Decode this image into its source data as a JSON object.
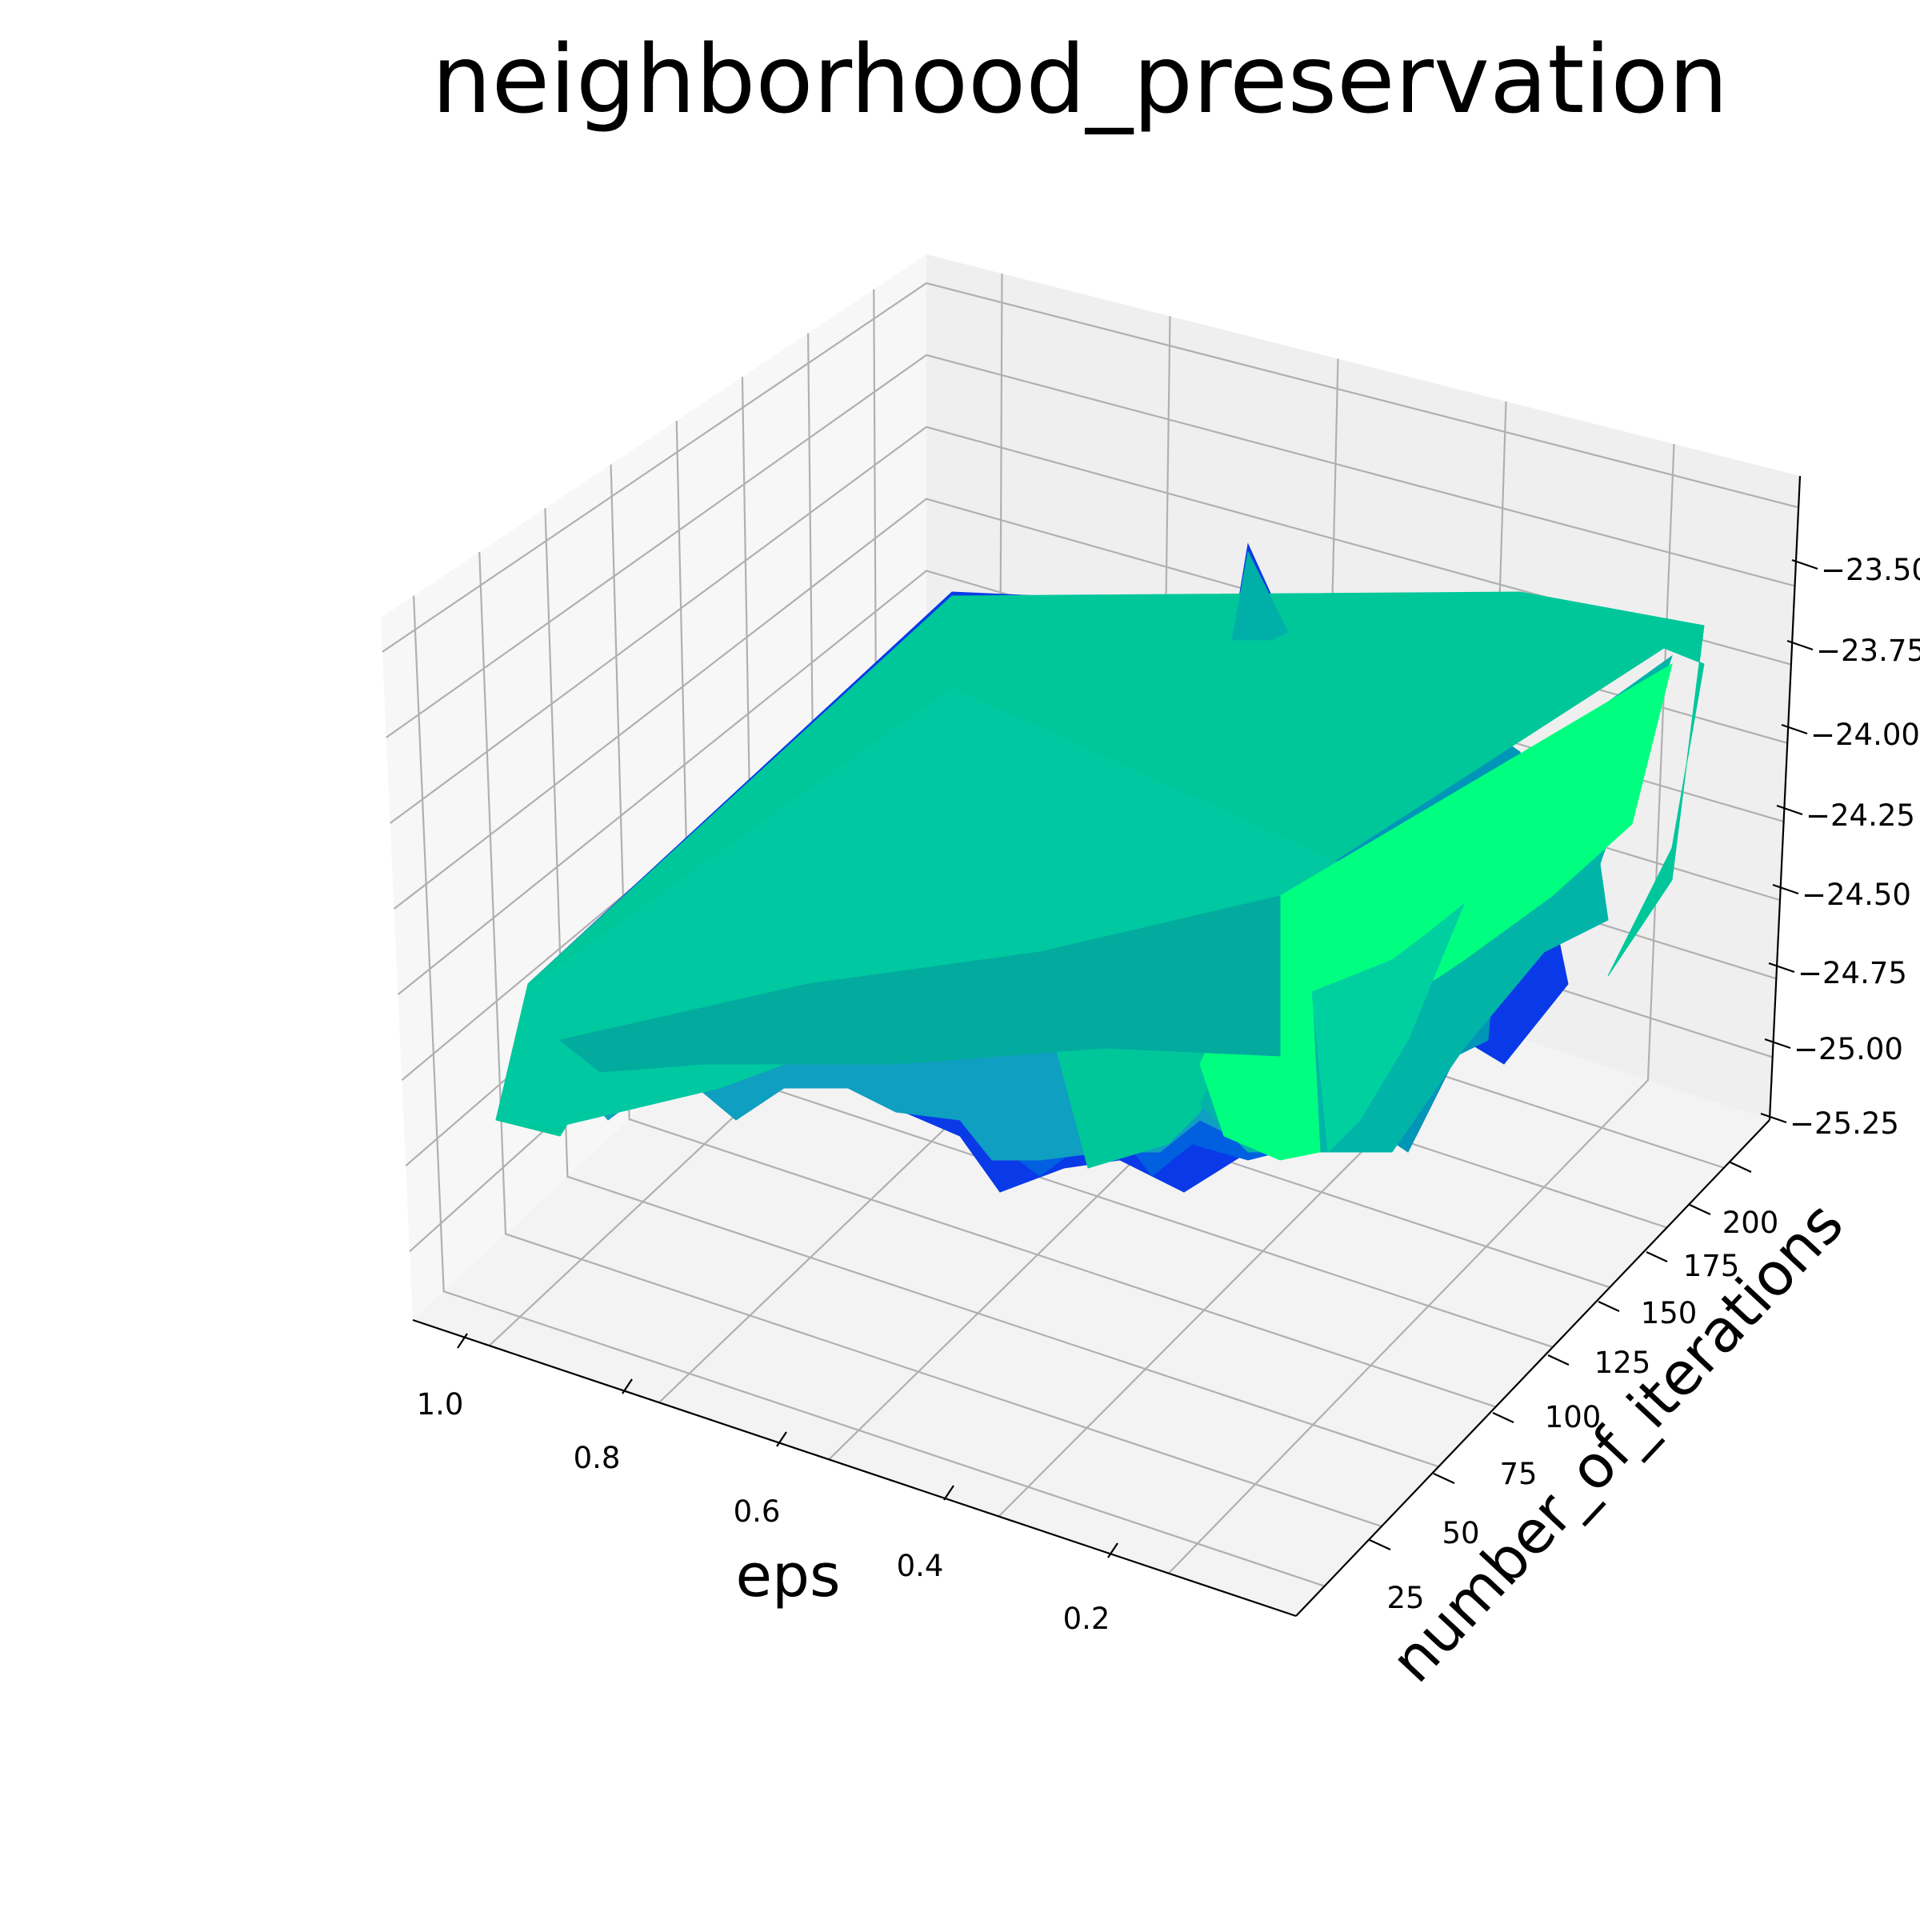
{
  "chart_data": {
    "type": "surface",
    "title": "neighborhood_preservation",
    "xlabel": "eps",
    "ylabel": "number_of_iterations",
    "zlabel": "",
    "x_ticks": [
      "1.0",
      "0.8",
      "0.6",
      "0.4",
      "0.2"
    ],
    "y_ticks": [
      "25",
      "50",
      "75",
      "100",
      "125",
      "150",
      "175",
      "200"
    ],
    "z_ticks": [
      "−23.50",
      "−23.75",
      "−24.00",
      "−24.25",
      "−24.50",
      "−24.75",
      "−25.00",
      "−25.25"
    ],
    "xlim": [
      0.05,
      1.05
    ],
    "ylim": [
      10,
      210
    ],
    "zlim": [
      -25.35,
      -23.3
    ],
    "colormap": "winter",
    "grid": true,
    "z_direction": "inverted",
    "surface": [
      {
        "eps": 1.0,
        "iterations": 25,
        "z": -25.1
      },
      {
        "eps": 1.0,
        "iterations": 200,
        "z": -23.6
      },
      {
        "eps": 0.1,
        "iterations": 25,
        "z": -24.9
      },
      {
        "eps": 0.1,
        "iterations": 200,
        "z": -23.7
      },
      {
        "eps": 0.5,
        "iterations": 110,
        "z": -25.25
      },
      {
        "eps": 0.6,
        "iterations": 60,
        "z": -25.2
      },
      {
        "eps": 0.3,
        "iterations": 150,
        "z": -23.55
      }
    ]
  }
}
